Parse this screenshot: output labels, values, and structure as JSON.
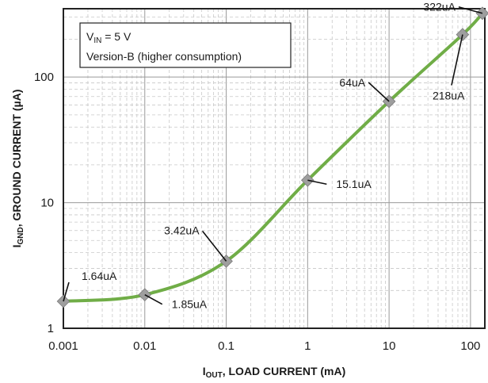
{
  "chart_data": {
    "type": "line",
    "x_scale": "log",
    "y_scale": "log",
    "xlim": [
      0.001,
      150
    ],
    "ylim": [
      1,
      350
    ],
    "grid": true,
    "xlabel": {
      "main": "I",
      "sub": "OUT",
      "rest": ", LOAD CURRENT (mA)"
    },
    "ylabel": {
      "main": "I",
      "sub": "GND",
      "rest": ", GROUND CURRENT (µA)"
    },
    "x_ticks": [
      {
        "value": 0.001,
        "label": "0.001"
      },
      {
        "value": 0.01,
        "label": "0.01"
      },
      {
        "value": 0.1,
        "label": "0.1"
      },
      {
        "value": 1,
        "label": "1"
      },
      {
        "value": 10,
        "label": "10"
      },
      {
        "value": 100,
        "label": "100"
      }
    ],
    "y_ticks": [
      {
        "value": 1,
        "label": "1"
      },
      {
        "value": 10,
        "label": "10"
      },
      {
        "value": 100,
        "label": "100"
      }
    ],
    "legend": {
      "placement": "top-left",
      "line1": {
        "main": "V",
        "sub": "IN",
        "rest": " = 5 V"
      },
      "line2": "Version-B (higher consumption)"
    },
    "series": [
      {
        "color": "#70ad47",
        "marker_color": "#9e9e9e",
        "x": [
          0.001,
          0.01,
          0.1,
          1,
          10,
          80,
          140
        ],
        "y": [
          1.64,
          1.85,
          3.42,
          15.1,
          64,
          218,
          322
        ]
      }
    ],
    "annotations": [
      {
        "text": "1.64uA",
        "x": 0.001,
        "y": 1.64
      },
      {
        "text": "1.85uA",
        "x": 0.01,
        "y": 1.85
      },
      {
        "text": "3.42uA",
        "x": 0.1,
        "y": 3.42
      },
      {
        "text": "15.1uA",
        "x": 1,
        "y": 15.1
      },
      {
        "text": "64uA",
        "x": 10,
        "y": 64
      },
      {
        "text": "218uA",
        "x": 80,
        "y": 218
      },
      {
        "text": "322uA",
        "x": 140,
        "y": 322
      }
    ]
  }
}
